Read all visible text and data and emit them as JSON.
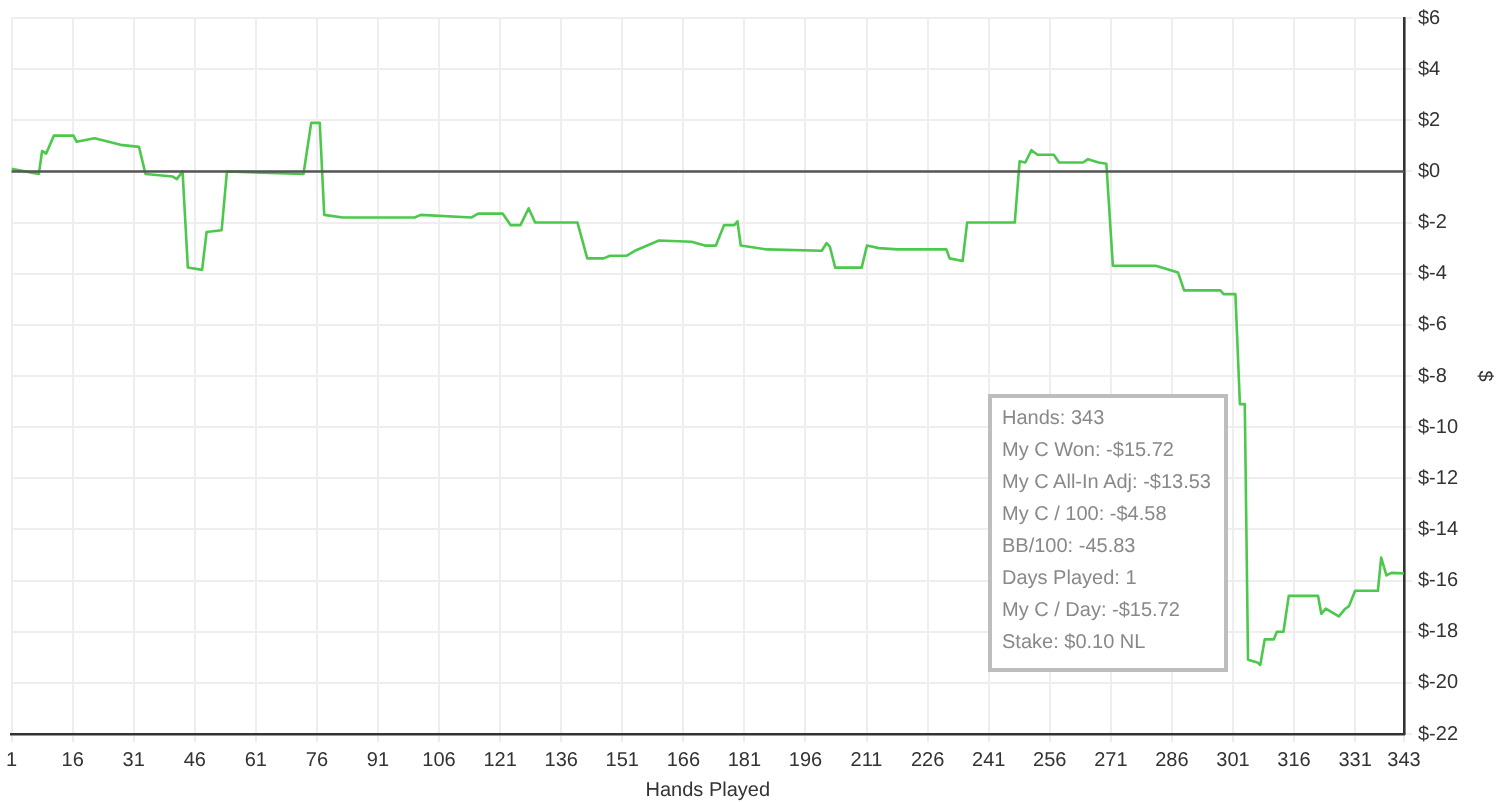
{
  "chart_data": {
    "type": "line",
    "xlabel": "Hands Played",
    "ylabel": "$",
    "series": [
      {
        "color": "#4cc94c",
        "x": [
          1,
          7.7,
          8.5,
          9.5,
          11.4,
          16.2,
          17,
          21.4,
          27.8,
          32.3,
          33.9,
          40.6,
          41.6,
          43,
          44.3,
          47.8,
          48.9,
          52.6,
          53.9,
          72.7,
          74.6,
          76.7,
          77.8,
          82.3,
          100,
          101.5,
          114,
          115.6,
          121.6,
          123.6,
          126,
          128,
          129.6,
          140,
          142.4,
          146.4,
          148,
          152,
          154.4,
          160,
          168,
          171.3,
          174,
          176,
          178.5,
          179.3,
          180.1,
          186.5,
          200,
          201.2,
          202,
          203.3,
          209.8,
          211.1,
          214,
          218.6,
          230.6,
          231.4,
          234.6,
          235.7,
          247.4,
          248.6,
          250,
          251.5,
          253,
          257,
          258.3,
          264.2,
          265.4,
          268,
          269.9,
          271.5,
          282,
          284.3,
          287.5,
          289,
          297.9,
          298.7,
          301.6,
          302.7,
          303.9,
          304.7,
          307,
          307.7,
          308.8,
          311,
          311.8,
          313.4,
          314.7,
          321.9,
          322.7,
          323.8,
          327,
          328.6,
          329.5,
          331,
          336.6,
          337.4,
          338.7,
          339.9,
          343
        ],
        "values": [
          0.1,
          -0.1,
          0.8,
          0.7,
          1.4,
          1.4,
          1.16,
          1.3,
          1.04,
          0.96,
          -0.1,
          -0.2,
          -0.3,
          0,
          -3.76,
          -3.85,
          -2.37,
          -2.3,
          0,
          -0.1,
          1.9,
          1.9,
          -1.7,
          -1.8,
          -1.8,
          -1.7,
          -1.8,
          -1.65,
          -1.65,
          -2.1,
          -2.1,
          -1.44,
          -2,
          -2,
          -3.4,
          -3.4,
          -3.3,
          -3.3,
          -3.08,
          -2.7,
          -2.75,
          -2.9,
          -2.9,
          -2.1,
          -2.1,
          -1.95,
          -2.9,
          -3.05,
          -3.1,
          -2.8,
          -2.95,
          -3.76,
          -3.76,
          -2.9,
          -3,
          -3.05,
          -3.05,
          -3.4,
          -3.5,
          -2,
          -2,
          0.4,
          0.35,
          0.83,
          0.65,
          0.65,
          0.35,
          0.35,
          0.48,
          0.35,
          0.3,
          -3.69,
          -3.69,
          -3.8,
          -3.95,
          -4.65,
          -4.65,
          -4.8,
          -4.8,
          -9.1,
          -9.1,
          -19.1,
          -19.2,
          -19.3,
          -18.3,
          -18.3,
          -18,
          -18,
          -16.6,
          -16.6,
          -17.3,
          -17.1,
          -17.4,
          -17.1,
          -17,
          -16.4,
          -16.4,
          -15.1,
          -15.8,
          -15.7,
          -15.72
        ]
      }
    ],
    "xlim": [
      1,
      343
    ],
    "xticks": [
      1,
      16,
      31,
      46,
      61,
      76,
      91,
      106,
      121,
      136,
      151,
      166,
      181,
      196,
      211,
      226,
      241,
      256,
      271,
      286,
      301,
      316,
      331,
      343
    ],
    "ylim": [
      -22,
      6
    ],
    "yticks": [
      {
        "value": -22,
        "label": "$-22"
      },
      {
        "value": -20,
        "label": "$-20"
      },
      {
        "value": -18,
        "label": "$-18"
      },
      {
        "value": -16,
        "label": "$-16"
      },
      {
        "value": -14,
        "label": "$-14"
      },
      {
        "value": -12,
        "label": "$-12"
      },
      {
        "value": -10,
        "label": "$-10"
      },
      {
        "value": -8,
        "label": "$-8"
      },
      {
        "value": -6,
        "label": "$-6"
      },
      {
        "value": -4,
        "label": "$-4"
      },
      {
        "value": -2,
        "label": "$-2"
      },
      {
        "value": 0,
        "label": "$0"
      },
      {
        "value": 2,
        "label": "$2"
      },
      {
        "value": 4,
        "label": "$4"
      },
      {
        "value": 6,
        "label": "$6"
      }
    ],
    "ref_lines": [
      {
        "axis": "y",
        "value": 0,
        "color": "#555555"
      }
    ],
    "grid": true,
    "legend": false,
    "marker": "none",
    "line_style": "solid",
    "annotations": [
      "Hands: 343",
      "My C Won: -$15.72",
      "My C All-In Adj: -$13.53",
      "My C / 100: -$4.58",
      "BB/100: -45.83",
      "Days Played: 1",
      "My C / Day: -$15.72",
      "Stake: $0.10 NL"
    ]
  }
}
